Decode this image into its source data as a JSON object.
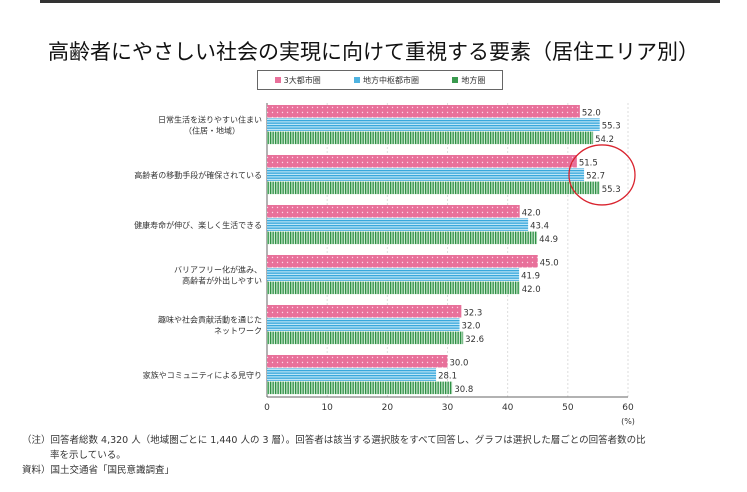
{
  "chart_data": {
    "type": "bar",
    "orientation": "horizontal",
    "title": "高齢者にやさしい社会の実現に向けて重視する要素（居住エリア別）",
    "categories": [
      [
        "日常生活を送りやすい住まい",
        "（住居・地域）"
      ],
      [
        "高齢者の移動手段が確保されている"
      ],
      [
        "健康寿命が伸び、楽しく生活できる"
      ],
      [
        "バリアフリー化が進み、",
        "高齢者が外出しやすい"
      ],
      [
        "趣味や社会貢献活動を通じた",
        "ネットワーク"
      ],
      [
        "家族やコミュニティによる見守り"
      ]
    ],
    "series": [
      {
        "name": "3大都市圏",
        "color": "#e8709a",
        "values": [
          52.0,
          51.5,
          42.0,
          45.0,
          32.3,
          30.0
        ]
      },
      {
        "name": "地方中枢都市圏",
        "color": "#4fb3e0",
        "values": [
          55.3,
          52.7,
          43.4,
          41.9,
          32.0,
          28.1
        ]
      },
      {
        "name": "地方圏",
        "color": "#3a9a4f",
        "values": [
          54.2,
          55.3,
          44.9,
          42.0,
          32.6,
          30.8
        ]
      }
    ],
    "xlim": [
      0,
      60
    ],
    "xticks": [
      "0",
      "10",
      "20",
      "30",
      "40",
      "50",
      "60"
    ],
    "xunit": "(%)",
    "grid": true,
    "legend_placement": "top",
    "annotation": "red circle around 高齢者の移動手段が確保されている values",
    "annotation_color": "#d9232e"
  },
  "notes": {
    "line1": "（注）回答者総数 4,320 人（地域圏ごとに 1,440 人の 3 層）。回答者は該当する選択肢をすべて回答し、グラフは選択した層ごとの回答者数の比",
    "line2": "率を示している。",
    "source": "資料）国土交通省「国民意識調査」"
  }
}
